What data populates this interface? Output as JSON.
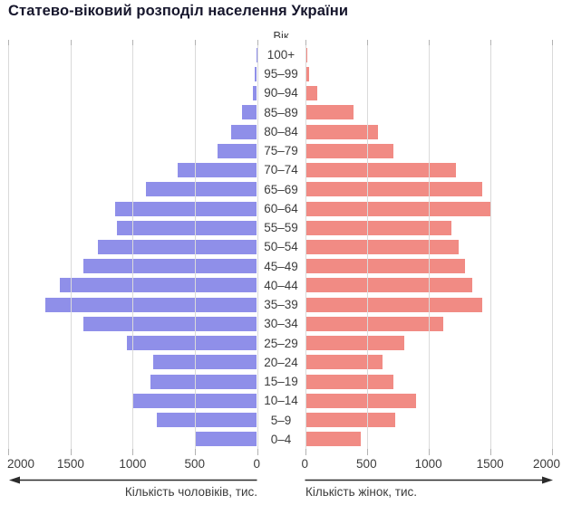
{
  "title": "Статево-віковий розподіл населення України",
  "chart_data": {
    "type": "bar",
    "subtype": "population-pyramid",
    "grid": true,
    "age_axis_label": "Вік",
    "xlim": [
      0,
      2000
    ],
    "left": {
      "label": "Кількість чоловіків, тис.",
      "color": "#8f8fe9",
      "ticks": [
        2000,
        1500,
        1000,
        500,
        0
      ]
    },
    "right": {
      "label": "Кількість жінок, тис.",
      "color": "#f18b84",
      "ticks": [
        0,
        500,
        1000,
        1500,
        2000
      ]
    },
    "age_groups": [
      "100+",
      "95–99",
      "90–94",
      "85–89",
      "80–84",
      "75–79",
      "70–74",
      "65–69",
      "60–64",
      "55–59",
      "50–54",
      "45–49",
      "40–44",
      "35–39",
      "30–34",
      "25–29",
      "20–24",
      "15–19",
      "10–14",
      "5–9",
      "0–4"
    ],
    "series": [
      {
        "name": "male",
        "side": "left",
        "values": [
          5,
          15,
          35,
          120,
          205,
          315,
          635,
          890,
          1140,
          1130,
          1280,
          1395,
          1590,
          1705,
          1395,
          1045,
          835,
          860,
          1005,
          805,
          500
        ]
      },
      {
        "name": "female",
        "side": "right",
        "values": [
          20,
          30,
          100,
          390,
          590,
          715,
          1220,
          1440,
          1500,
          1185,
          1245,
          1300,
          1355,
          1440,
          1120,
          805,
          630,
          715,
          900,
          730,
          450
        ]
      }
    ]
  }
}
